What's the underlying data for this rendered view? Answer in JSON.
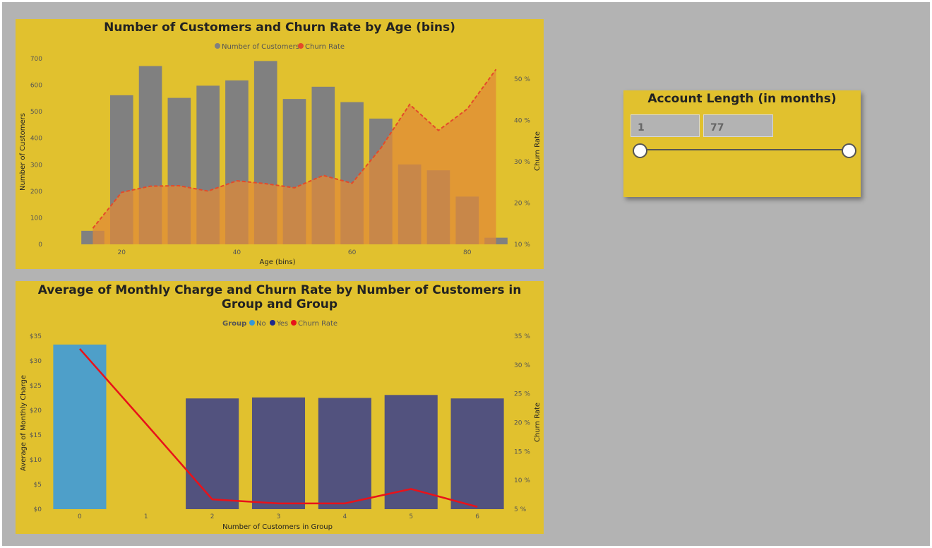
{
  "chart_data": [
    {
      "type": "bar",
      "title": "Number of Customers and Churn Rate by Age (bins)",
      "xlabel": "Age (bins)",
      "ylabel": "Number of Customers",
      "y2label": "Churn Rate",
      "legend": [
        "Number of Customers",
        "Churn Rate"
      ],
      "legend_position": "top-center",
      "x": [
        15,
        20,
        25,
        30,
        35,
        40,
        45,
        50,
        55,
        60,
        65,
        70,
        75,
        80,
        85
      ],
      "xlim": [
        12,
        88
      ],
      "xticks": [
        20,
        40,
        60,
        80
      ],
      "ylim": [
        0,
        700
      ],
      "yticks": [
        "0",
        "100",
        "200",
        "300",
        "400",
        "500",
        "600",
        "700"
      ],
      "y2lim": [
        10,
        55
      ],
      "y2ticks": [
        "10 %",
        "20 %",
        "30 %",
        "40 %",
        "50 %"
      ],
      "series": [
        {
          "name": "Number of Customers",
          "type": "bar",
          "color": "#808080",
          "values": [
            51,
            562,
            672,
            552,
            598,
            618,
            691,
            548,
            594,
            536,
            474,
            301,
            279,
            180,
            25
          ]
        },
        {
          "name": "Churn Rate",
          "type": "area-line",
          "color": "#e44a2a",
          "fill": "#e08a37",
          "dashed": true,
          "values": [
            13.9,
            22.6,
            24.1,
            24.2,
            22.9,
            25.4,
            24.7,
            23.7,
            26.7,
            24.8,
            33.3,
            43.9,
            37.6,
            42.8,
            52.4
          ]
        }
      ]
    },
    {
      "type": "bar",
      "title": "Average of Monthly Charge and Churn Rate by Number of Customers in Group and Group",
      "xlabel": "Number of Customers in Group",
      "ylabel": "Average of Monthly Charge",
      "y2label": "Churn Rate",
      "legend_title": "Group",
      "legend_position": "top-center",
      "categories": [
        "0",
        "1",
        "2",
        "3",
        "4",
        "5",
        "6"
      ],
      "ylim": [
        0,
        35
      ],
      "yticks": [
        "$0",
        "$5",
        "$10",
        "$15",
        "$20",
        "$25",
        "$30",
        "$35"
      ],
      "y2lim": [
        5,
        35
      ],
      "y2ticks": [
        "5 %",
        "10 %",
        "15 %",
        "20 %",
        "25 %",
        "30 %",
        "35 %"
      ],
      "series": [
        {
          "name": "No",
          "type": "bar",
          "color": "#4e9fc9",
          "legend_color": "#3599d8",
          "values": [
            33.3,
            null,
            null,
            null,
            null,
            null,
            null
          ]
        },
        {
          "name": "Yes",
          "type": "bar",
          "color": "#52527e",
          "legend_color": "#1f2a8c",
          "values": [
            null,
            null,
            22.4,
            22.6,
            22.5,
            23.1,
            22.4
          ]
        },
        {
          "name": "Churn Rate",
          "type": "line",
          "color": "#e8121a",
          "values": [
            32.8,
            19.8,
            6.7,
            6.0,
            6.0,
            8.5,
            5.4
          ]
        }
      ]
    }
  ],
  "slicer": {
    "title": "Account Length (in months)",
    "min_value": "1",
    "max_value": "77",
    "range_min": 1,
    "range_max": 77
  }
}
